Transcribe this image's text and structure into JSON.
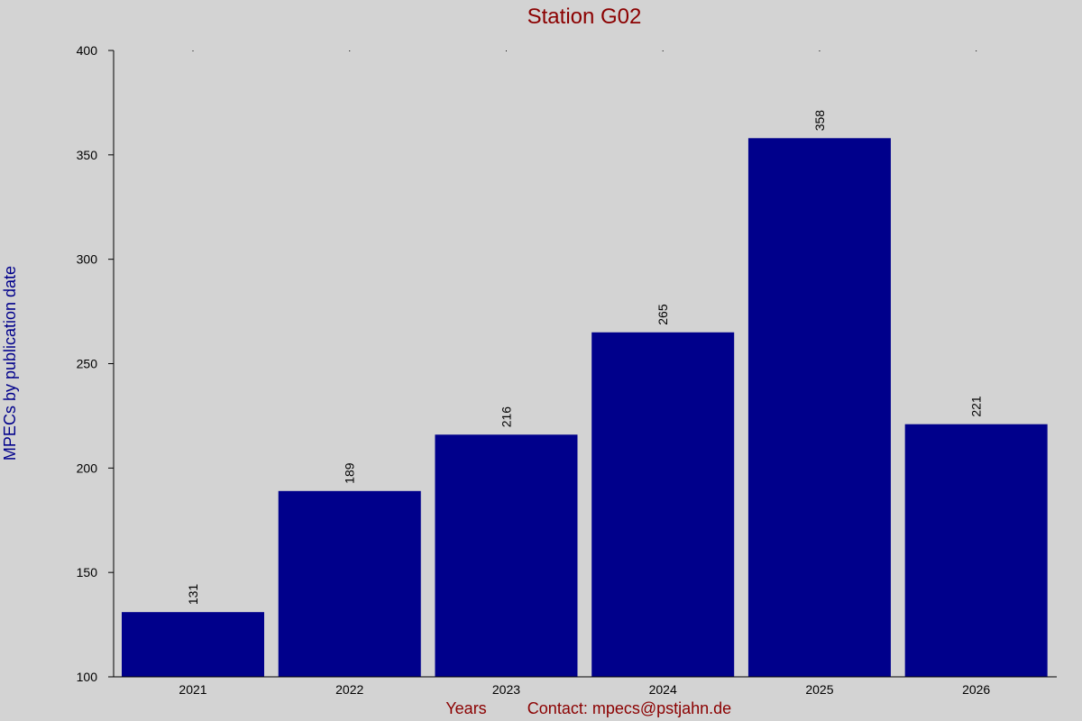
{
  "chart_data": {
    "type": "bar",
    "title": "Station G02",
    "xlabel": "Years",
    "footer_note": "Contact: mpecs@pstjahn.de",
    "ylabel": "MPECs by publication date",
    "categories": [
      "2021",
      "2022",
      "2023",
      "2024",
      "2025",
      "2026"
    ],
    "values": [
      131,
      189,
      216,
      265,
      358,
      221
    ],
    "ylim": [
      100,
      400
    ],
    "yticks": [
      100,
      150,
      200,
      250,
      300,
      350,
      400
    ],
    "grid": false,
    "legend": "none"
  },
  "colors": {
    "background": "#d3d3d3",
    "bar": "#00008b",
    "title": "#8b0000",
    "xlabel": "#8b0000",
    "ylabel": "#00008b",
    "axis": "#000000",
    "text": "#000000"
  }
}
